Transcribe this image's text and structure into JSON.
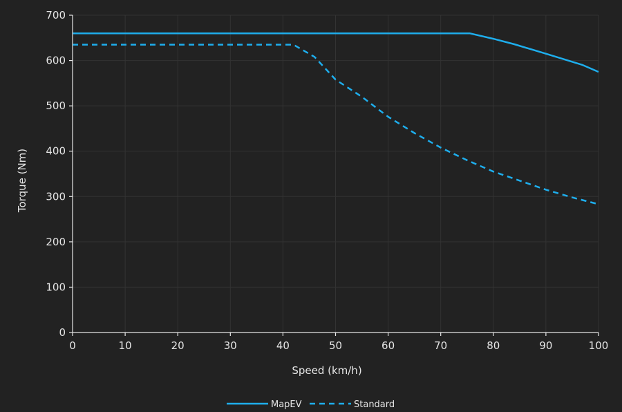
{
  "colors": {
    "background": "#222222",
    "grid": "#333333",
    "text": "#e6e6e6",
    "series": "#1eaeed"
  },
  "chart_data": {
    "type": "line",
    "title": "",
    "xlabel": "Speed (km/h)",
    "ylabel": "Torque (Nm)",
    "xlim": [
      0,
      100
    ],
    "ylim": [
      0,
      700
    ],
    "x_ticks": [
      0,
      10,
      20,
      30,
      40,
      50,
      60,
      70,
      80,
      90,
      100
    ],
    "y_ticks": [
      0,
      100,
      200,
      300,
      400,
      500,
      600,
      700
    ],
    "grid": true,
    "legend_position": "bottom-center",
    "series": [
      {
        "name": "MapEV",
        "style": "solid",
        "x": [
          0,
          10,
          20,
          30,
          40,
          50,
          60,
          70,
          75.5,
          80,
          84,
          90,
          97,
          100
        ],
        "y": [
          660,
          660,
          660,
          660,
          660,
          660,
          660,
          660,
          660,
          648,
          636,
          615,
          590,
          575
        ]
      },
      {
        "name": "Standard",
        "style": "dashed",
        "x": [
          0,
          10,
          20,
          30,
          40,
          42,
          46,
          50,
          55,
          60,
          65,
          70,
          75,
          80,
          85,
          90,
          95,
          100
        ],
        "y": [
          635,
          635,
          635,
          635,
          635,
          635,
          608,
          558,
          520,
          476,
          440,
          408,
          380,
          355,
          335,
          315,
          298,
          283
        ]
      }
    ]
  }
}
